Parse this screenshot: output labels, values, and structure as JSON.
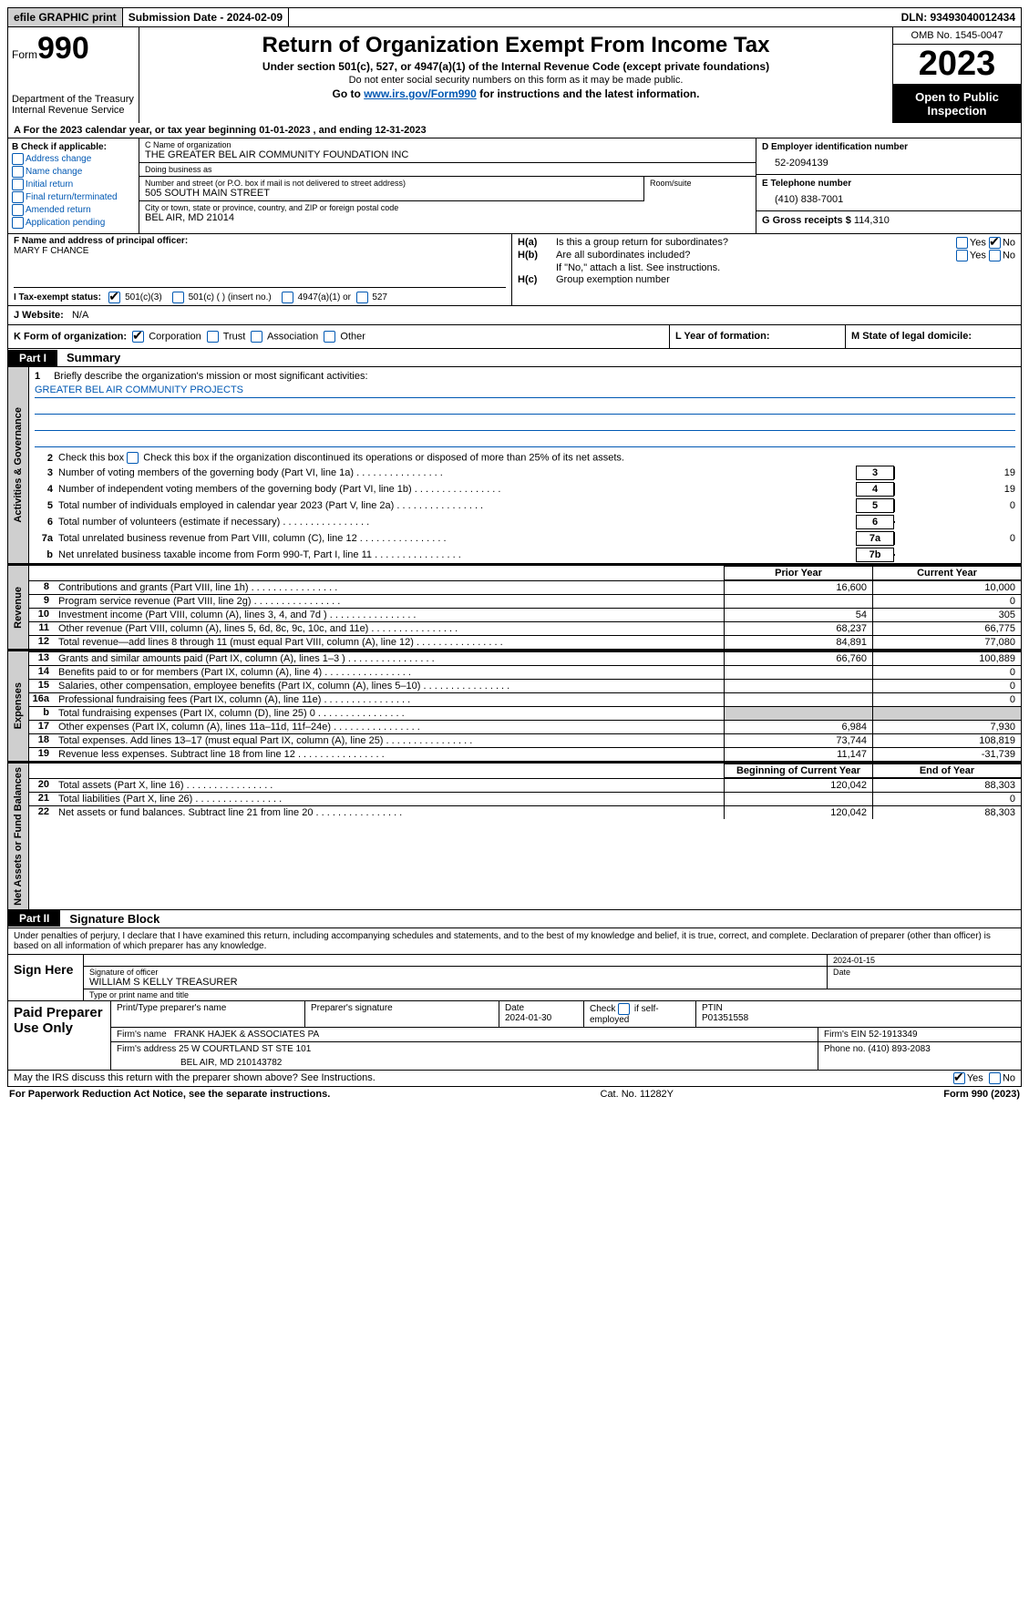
{
  "top": {
    "efile": "efile GRAPHIC print",
    "submission": "Submission Date - 2024-02-09",
    "dln": "DLN: 93493040012434"
  },
  "header": {
    "form_prefix": "Form",
    "form_num": "990",
    "title": "Return of Organization Exempt From Income Tax",
    "sub1": "Under section 501(c), 527, or 4947(a)(1) of the Internal Revenue Code (except private foundations)",
    "sub2": "Do not enter social security numbers on this form as it may be made public.",
    "sub3_pre": "Go to ",
    "sub3_link": "www.irs.gov/Form990",
    "sub3_post": " for instructions and the latest information.",
    "dept": "Department of the Treasury",
    "irs": "Internal Revenue Service",
    "omb": "OMB No. 1545-0047",
    "year": "2023",
    "open": "Open to Public Inspection"
  },
  "period": "A  For the 2023 calendar year, or tax year beginning 01-01-2023   , and ending 12-31-2023",
  "B": {
    "header": "B Check if applicable:",
    "items": [
      "Address change",
      "Name change",
      "Initial return",
      "Final return/terminated",
      "Amended return",
      "Application pending"
    ]
  },
  "C": {
    "name_lbl": "C Name of organization",
    "name": "THE GREATER BEL AIR COMMUNITY FOUNDATION INC",
    "dba_lbl": "Doing business as",
    "dba": "",
    "addr_lbl": "Number and street (or P.O. box if mail is not delivered to street address)",
    "addr": "505 SOUTH MAIN STREET",
    "room_lbl": "Room/suite",
    "city_lbl": "City or town, state or province, country, and ZIP or foreign postal code",
    "city": "BEL AIR, MD  21014"
  },
  "DE": {
    "D_lbl": "D Employer identification number",
    "D": "52-2094139",
    "E_lbl": "E Telephone number",
    "E": "(410) 838-7001",
    "G_lbl": "G Gross receipts $",
    "G": "114,310"
  },
  "F": {
    "lbl": "F  Name and address of principal officer:",
    "val": "MARY F CHANCE"
  },
  "H": {
    "a_lbl": "H(a)",
    "a_txt": "Is this a group return for subordinates?",
    "b_lbl": "H(b)",
    "b_txt": "Are all subordinates included?",
    "b_note": "If \"No,\" attach a list. See instructions.",
    "c_lbl": "H(c)",
    "c_txt": "Group exemption number",
    "yes": "Yes",
    "no": "No"
  },
  "I": {
    "lbl": "I  Tax-exempt status:",
    "o1": "501(c)(3)",
    "o2": "501(c) (  ) (insert no.)",
    "o3": "4947(a)(1) or",
    "o4": "527"
  },
  "J": {
    "lbl": "J  Website:",
    "val": "N/A"
  },
  "K": {
    "lbl": "K Form of organization:",
    "o1": "Corporation",
    "o2": "Trust",
    "o3": "Association",
    "o4": "Other"
  },
  "L": "L Year of formation:",
  "M": "M State of legal domicile:",
  "part1": {
    "label": "Part I",
    "title": "Summary"
  },
  "mission": {
    "q": "Briefly describe the organization's mission or most significant activities:",
    "a": "GREATER BEL AIR COMMUNITY PROJECTS"
  },
  "gov": {
    "l2": "Check this box       if the organization discontinued its operations or disposed of more than 25% of its net assets.",
    "rows": [
      {
        "n": "3",
        "t": "Number of voting members of the governing body (Part VI, line 1a)",
        "box": "3",
        "v": "19"
      },
      {
        "n": "4",
        "t": "Number of independent voting members of the governing body (Part VI, line 1b)",
        "box": "4",
        "v": "19"
      },
      {
        "n": "5",
        "t": "Total number of individuals employed in calendar year 2023 (Part V, line 2a)",
        "box": "5",
        "v": "0"
      },
      {
        "n": "6",
        "t": "Total number of volunteers (estimate if necessary)",
        "box": "6",
        "v": ""
      },
      {
        "n": "7a",
        "t": "Total unrelated business revenue from Part VIII, column (C), line 12",
        "box": "7a",
        "v": "0"
      },
      {
        "n": "b",
        "t": "Net unrelated business taxable income from Form 990-T, Part I, line 11",
        "box": "7b",
        "v": ""
      }
    ]
  },
  "cols": {
    "prior": "Prior Year",
    "curr": "Current Year",
    "boy": "Beginning of Current Year",
    "eoy": "End of Year"
  },
  "revenue": [
    {
      "n": "8",
      "t": "Contributions and grants (Part VIII, line 1h)",
      "p": "16,600",
      "c": "10,000"
    },
    {
      "n": "9",
      "t": "Program service revenue (Part VIII, line 2g)",
      "p": "",
      "c": "0"
    },
    {
      "n": "10",
      "t": "Investment income (Part VIII, column (A), lines 3, 4, and 7d )",
      "p": "54",
      "c": "305"
    },
    {
      "n": "11",
      "t": "Other revenue (Part VIII, column (A), lines 5, 6d, 8c, 9c, 10c, and 11e)",
      "p": "68,237",
      "c": "66,775"
    },
    {
      "n": "12",
      "t": "Total revenue—add lines 8 through 11 (must equal Part VIII, column (A), line 12)",
      "p": "84,891",
      "c": "77,080"
    }
  ],
  "expenses": [
    {
      "n": "13",
      "t": "Grants and similar amounts paid (Part IX, column (A), lines 1–3 )",
      "p": "66,760",
      "c": "100,889"
    },
    {
      "n": "14",
      "t": "Benefits paid to or for members (Part IX, column (A), line 4)",
      "p": "",
      "c": "0"
    },
    {
      "n": "15",
      "t": "Salaries, other compensation, employee benefits (Part IX, column (A), lines 5–10)",
      "p": "",
      "c": "0"
    },
    {
      "n": "16a",
      "t": "Professional fundraising fees (Part IX, column (A), line 11e)",
      "p": "",
      "c": "0"
    },
    {
      "n": "b",
      "t": "Total fundraising expenses (Part IX, column (D), line 25) 0",
      "p": "GRAY",
      "c": "GRAY"
    },
    {
      "n": "17",
      "t": "Other expenses (Part IX, column (A), lines 11a–11d, 11f–24e)",
      "p": "6,984",
      "c": "7,930"
    },
    {
      "n": "18",
      "t": "Total expenses. Add lines 13–17 (must equal Part IX, column (A), line 25)",
      "p": "73,744",
      "c": "108,819"
    },
    {
      "n": "19",
      "t": "Revenue less expenses. Subtract line 18 from line 12",
      "p": "11,147",
      "c": "-31,739"
    }
  ],
  "netassets": [
    {
      "n": "20",
      "t": "Total assets (Part X, line 16)",
      "p": "120,042",
      "c": "88,303"
    },
    {
      "n": "21",
      "t": "Total liabilities (Part X, line 26)",
      "p": "",
      "c": "0"
    },
    {
      "n": "22",
      "t": "Net assets or fund balances. Subtract line 21 from line 20",
      "p": "120,042",
      "c": "88,303"
    }
  ],
  "sidebars": {
    "gov": "Activities & Governance",
    "rev": "Revenue",
    "exp": "Expenses",
    "net": "Net Assets or Fund Balances"
  },
  "part2": {
    "label": "Part II",
    "title": "Signature Block"
  },
  "penalty": "Under penalties of perjury, I declare that I have examined this return, including accompanying schedules and statements, and to the best of my knowledge and belief, it is true, correct, and complete. Declaration of preparer (other than officer) is based on all information of which preparer has any knowledge.",
  "sign": {
    "here": "Sign Here",
    "sig_lbl": "Signature of officer",
    "date_lbl": "Date",
    "date": "2024-01-15",
    "name_lbl": "Type or print name and title",
    "name": "WILLIAM S KELLY TREASURER"
  },
  "paid": {
    "lbl": "Paid Preparer Use Only",
    "h1": "Print/Type preparer's name",
    "h2": "Preparer's signature",
    "h3": "Date",
    "h3v": "2024-01-30",
    "h4": "Check        if self-employed",
    "h5": "PTIN",
    "h5v": "P01351558",
    "firm_lbl": "Firm's name",
    "firm": "FRANK HAJEK & ASSOCIATES PA",
    "ein_lbl": "Firm's EIN",
    "ein": "52-1913349",
    "addr_lbl": "Firm's address",
    "addr1": "25 W COURTLAND ST STE 101",
    "addr2": "BEL AIR, MD  210143782",
    "phone_lbl": "Phone no.",
    "phone": "(410) 893-2083"
  },
  "discuss": "May the IRS discuss this return with the preparer shown above? See Instructions.",
  "footer": {
    "l": "For Paperwork Reduction Act Notice, see the separate instructions.",
    "m": "Cat. No. 11282Y",
    "r": "Form 990 (2023)"
  }
}
